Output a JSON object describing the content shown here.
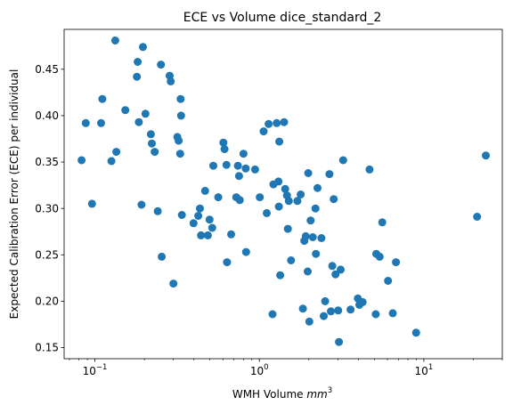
{
  "chart_data": {
    "type": "scatter",
    "title": "ECE vs Volume dice_standard_2",
    "xlabel": "WMH Volume mm³",
    "xlabel_parts": {
      "text": "WMH Volume ",
      "math": "mm",
      "sup": "3"
    },
    "ylabel": "Expected Calibration Error (ECE) per individual",
    "x_scale": "log",
    "xlim": [
      0.065,
      30
    ],
    "ylim": [
      0.138,
      0.493
    ],
    "x_ticks": [
      {
        "value": 0.1,
        "base": "10",
        "exp": "−1"
      },
      {
        "value": 1,
        "base": "10",
        "exp": "0"
      },
      {
        "value": 10,
        "base": "10",
        "exp": "1"
      }
    ],
    "y_ticks": [
      0.15,
      0.2,
      0.25,
      0.3,
      0.35,
      0.4,
      0.45
    ],
    "y_tick_labels": [
      "0.15",
      "0.20",
      "0.25",
      "0.30",
      "0.35",
      "0.40",
      "0.45"
    ],
    "grid": false,
    "legend": "none",
    "color": "#1f77b4",
    "series": [
      {
        "points": [
          [
            0.083,
            0.352
          ],
          [
            0.088,
            0.392
          ],
          [
            0.096,
            0.305
          ],
          [
            0.109,
            0.392
          ],
          [
            0.111,
            0.418
          ],
          [
            0.126,
            0.351
          ],
          [
            0.133,
            0.481
          ],
          [
            0.135,
            0.361
          ],
          [
            0.153,
            0.406
          ],
          [
            0.18,
            0.442
          ],
          [
            0.182,
            0.458
          ],
          [
            0.185,
            0.393
          ],
          [
            0.192,
            0.304
          ],
          [
            0.196,
            0.474
          ],
          [
            0.203,
            0.402
          ],
          [
            0.219,
            0.38
          ],
          [
            0.222,
            0.37
          ],
          [
            0.231,
            0.361
          ],
          [
            0.241,
            0.297
          ],
          [
            0.252,
            0.455
          ],
          [
            0.255,
            0.248
          ],
          [
            0.285,
            0.443
          ],
          [
            0.289,
            0.437
          ],
          [
            0.3,
            0.219
          ],
          [
            0.317,
            0.377
          ],
          [
            0.323,
            0.373
          ],
          [
            0.332,
            0.418
          ],
          [
            0.334,
            0.4
          ],
          [
            0.33,
            0.359
          ],
          [
            0.338,
            0.293
          ],
          [
            0.398,
            0.284
          ],
          [
            0.425,
            0.292
          ],
          [
            0.435,
            0.3
          ],
          [
            0.442,
            0.271
          ],
          [
            0.468,
            0.319
          ],
          [
            0.486,
            0.271
          ],
          [
            0.498,
            0.288
          ],
          [
            0.517,
            0.279
          ],
          [
            0.525,
            0.346
          ],
          [
            0.563,
            0.312
          ],
          [
            0.604,
            0.371
          ],
          [
            0.614,
            0.364
          ],
          [
            0.631,
            0.347
          ],
          [
            0.636,
            0.242
          ],
          [
            0.673,
            0.272
          ],
          [
            0.724,
            0.312
          ],
          [
            0.74,
            0.346
          ],
          [
            0.752,
            0.335
          ],
          [
            0.76,
            0.309
          ],
          [
            0.801,
            0.359
          ],
          [
            0.826,
            0.343
          ],
          [
            0.83,
            0.253
          ],
          [
            0.942,
            0.342
          ],
          [
            1.006,
            0.312
          ],
          [
            1.061,
            0.383
          ],
          [
            1.109,
            0.295
          ],
          [
            1.138,
            0.391
          ],
          [
            1.203,
            0.186
          ],
          [
            1.218,
            0.326
          ],
          [
            1.275,
            0.392
          ],
          [
            1.307,
            0.329
          ],
          [
            1.314,
            0.302
          ],
          [
            1.322,
            0.372
          ],
          [
            1.338,
            0.228
          ],
          [
            1.414,
            0.393
          ],
          [
            1.436,
            0.321
          ],
          [
            1.472,
            0.314
          ],
          [
            1.49,
            0.278
          ],
          [
            1.51,
            0.308
          ],
          [
            1.559,
            0.244
          ],
          [
            1.702,
            0.308
          ],
          [
            1.782,
            0.315
          ],
          [
            1.84,
            0.192
          ],
          [
            1.877,
            0.265
          ],
          [
            1.914,
            0.27
          ],
          [
            1.967,
            0.232
          ],
          [
            1.983,
            0.338
          ],
          [
            2.013,
            0.178
          ],
          [
            2.05,
            0.287
          ],
          [
            2.113,
            0.269
          ],
          [
            2.193,
            0.3
          ],
          [
            2.207,
            0.251
          ],
          [
            2.256,
            0.322
          ],
          [
            2.385,
            0.268
          ],
          [
            2.464,
            0.184
          ],
          [
            2.512,
            0.2
          ],
          [
            2.668,
            0.337
          ],
          [
            2.722,
            0.189
          ],
          [
            2.777,
            0.238
          ],
          [
            2.833,
            0.31
          ],
          [
            2.905,
            0.229
          ],
          [
            3.015,
            0.19
          ],
          [
            3.047,
            0.156
          ],
          [
            3.122,
            0.234
          ],
          [
            3.233,
            0.352
          ],
          [
            3.582,
            0.191
          ],
          [
            3.968,
            0.203
          ],
          [
            4.053,
            0.196
          ],
          [
            4.245,
            0.199
          ],
          [
            4.675,
            0.342
          ],
          [
            5.102,
            0.186
          ],
          [
            5.137,
            0.251
          ],
          [
            5.389,
            0.248
          ],
          [
            5.59,
            0.285
          ],
          [
            6.056,
            0.222
          ],
          [
            6.474,
            0.187
          ],
          [
            6.767,
            0.242
          ],
          [
            8.975,
            0.166
          ],
          [
            21.07,
            0.291
          ],
          [
            23.81,
            0.357
          ]
        ]
      }
    ]
  }
}
